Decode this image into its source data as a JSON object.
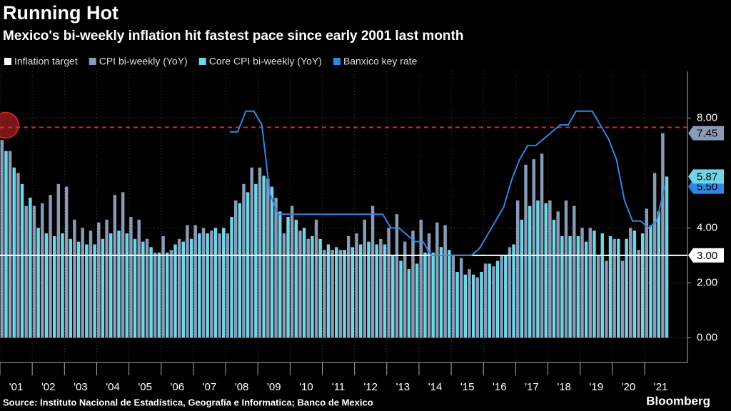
{
  "chart_data": {
    "type": "bar",
    "title": "Running Hot",
    "subtitle": "Mexico's bi-weekly inflation hit fastest pace since early 2001 last month",
    "source": "Source: Instituto Nacional de Estadística, Geografía e Informatica; Banco de Mexico",
    "brand": "Bloomberg",
    "categories": [
      "'01",
      null,
      null,
      null,
      "'02",
      null,
      null,
      null,
      "'03",
      null,
      null,
      null,
      "'04",
      null,
      null,
      null,
      "'05",
      null,
      null,
      null,
      "'06",
      null,
      null,
      null,
      "'07",
      null,
      null,
      null,
      "'08",
      null,
      null,
      null,
      "'09",
      null,
      null,
      null,
      "'10",
      null,
      null,
      null,
      "'11",
      null,
      null,
      null,
      "'12",
      null,
      null,
      null,
      "'13",
      null,
      null,
      null,
      "'14",
      null,
      null,
      null,
      "'15",
      null,
      null,
      null,
      "'16",
      null,
      null,
      null,
      "'17",
      null,
      null,
      null,
      "'18",
      null,
      null,
      null,
      "'19",
      null,
      null,
      null,
      "'20",
      null,
      null,
      null,
      "'21",
      null,
      null
    ],
    "target": {
      "name": "Inflation target",
      "value": 3,
      "value_label": "3.00",
      "color": "#ffffff"
    },
    "reference_line": {
      "value": 7.66,
      "color": "#e0262b"
    },
    "series": [
      {
        "name": "CPI bi-weekly (YoY)",
        "color": "#8a9bb8",
        "type": "bar",
        "values": [
          7.2,
          6.8,
          6.0,
          4.8,
          4.8,
          4.9,
          5.2,
          5.6,
          5.5,
          4.3,
          4.0,
          3.9,
          4.2,
          4.3,
          5.2,
          5.3,
          4.4,
          4.3,
          3.6,
          3.1,
          3.7,
          3.2,
          3.6,
          4.1,
          4.1,
          4.0,
          3.9,
          3.8,
          3.8,
          5.0,
          5.6,
          6.2,
          6.2,
          5.8,
          5.1,
          3.8,
          4.8,
          3.9,
          3.6,
          4.3,
          3.2,
          3.2,
          3.2,
          3.7,
          3.8,
          4.3,
          4.8,
          3.6,
          4.0,
          4.5,
          3.5,
          3.9,
          4.3,
          3.8,
          4.2,
          4.1,
          3.0,
          2.9,
          2.5,
          2.2,
          2.7,
          2.6,
          3.0,
          3.3,
          5.0,
          6.3,
          6.5,
          6.7,
          5.0,
          4.6,
          5.0,
          4.8,
          4.0,
          4.0,
          3.0,
          2.8,
          3.6,
          2.8,
          4.0,
          3.2,
          4.7,
          6.0,
          7.45
        ],
        "value_labels": [
          null,
          null,
          null,
          null,
          null,
          null,
          null,
          null,
          null,
          null,
          null,
          null,
          null,
          null,
          null,
          null,
          null,
          null,
          null,
          null,
          null,
          null,
          null,
          null,
          null,
          null,
          null,
          null,
          null,
          null,
          null,
          null,
          null,
          null,
          null,
          null,
          null,
          null,
          null,
          null,
          null,
          null,
          null,
          null,
          null,
          null,
          null,
          null,
          null,
          null,
          null,
          null,
          null,
          null,
          null,
          null,
          null,
          null,
          null,
          null,
          null,
          null,
          null,
          null,
          null,
          null,
          null,
          null,
          null,
          null,
          null,
          null,
          null,
          null,
          null,
          null,
          null,
          null,
          null,
          null,
          null,
          null,
          "7.45"
        ]
      },
      {
        "name": "Core CPI bi-weekly (YoY)",
        "color": "#6fd6e6",
        "type": "bar",
        "values": [
          6.8,
          6.2,
          5.6,
          5.1,
          4.0,
          3.8,
          3.7,
          3.8,
          3.6,
          3.5,
          3.4,
          3.4,
          3.6,
          3.8,
          3.9,
          3.8,
          3.6,
          3.5,
          3.3,
          3.1,
          3.1,
          3.4,
          3.5,
          3.6,
          3.8,
          3.8,
          4.0,
          4.0,
          4.4,
          4.9,
          5.3,
          5.6,
          5.9,
          5.5,
          4.6,
          4.4,
          4.3,
          4.0,
          3.7,
          3.6,
          3.4,
          3.3,
          3.2,
          3.3,
          3.4,
          3.5,
          3.4,
          3.4,
          3.0,
          2.8,
          2.5,
          2.7,
          3.1,
          3.1,
          3.3,
          3.2,
          2.4,
          2.3,
          2.3,
          2.4,
          2.7,
          2.8,
          3.0,
          3.4,
          4.3,
          4.8,
          5.0,
          4.9,
          4.3,
          3.7,
          3.7,
          3.7,
          3.5,
          3.9,
          3.8,
          3.7,
          3.6,
          3.6,
          3.9,
          3.8,
          4.1,
          4.6,
          5.87
        ],
        "value_labels": [
          null,
          null,
          null,
          null,
          null,
          null,
          null,
          null,
          null,
          null,
          null,
          null,
          null,
          null,
          null,
          null,
          null,
          null,
          null,
          null,
          null,
          null,
          null,
          null,
          null,
          null,
          null,
          null,
          null,
          null,
          null,
          null,
          null,
          null,
          null,
          null,
          null,
          null,
          null,
          null,
          null,
          null,
          null,
          null,
          null,
          null,
          null,
          null,
          null,
          null,
          null,
          null,
          null,
          null,
          null,
          null,
          null,
          null,
          null,
          null,
          null,
          null,
          null,
          null,
          null,
          null,
          null,
          null,
          null,
          null,
          null,
          null,
          null,
          null,
          null,
          null,
          null,
          null,
          null,
          null,
          null,
          null,
          "5.87"
        ]
      },
      {
        "name": "Banxico key rate",
        "color": "#2f86e6",
        "type": "line",
        "values": [
          null,
          null,
          null,
          null,
          null,
          null,
          null,
          null,
          null,
          null,
          null,
          null,
          null,
          null,
          null,
          null,
          null,
          null,
          null,
          null,
          null,
          null,
          null,
          null,
          null,
          null,
          null,
          null,
          7.5,
          7.5,
          8.25,
          8.25,
          7.75,
          5.25,
          4.5,
          4.5,
          4.5,
          4.5,
          4.5,
          4.5,
          4.5,
          4.5,
          4.5,
          4.5,
          4.5,
          4.5,
          4.5,
          4.5,
          4.0,
          4.0,
          3.75,
          3.5,
          3.5,
          3.0,
          3.0,
          3.0,
          3.0,
          3.0,
          3.0,
          3.25,
          3.75,
          4.25,
          4.75,
          5.75,
          6.5,
          7.0,
          7.0,
          7.25,
          7.5,
          7.75,
          7.75,
          8.25,
          8.25,
          8.25,
          7.75,
          7.25,
          6.5,
          5.0,
          4.25,
          4.25,
          4.0,
          4.25,
          5.5
        ],
        "value_labels": [
          null,
          null,
          null,
          null,
          null,
          null,
          null,
          null,
          null,
          null,
          null,
          null,
          null,
          null,
          null,
          null,
          null,
          null,
          null,
          null,
          null,
          null,
          null,
          null,
          null,
          null,
          null,
          null,
          null,
          null,
          null,
          null,
          null,
          null,
          null,
          null,
          null,
          null,
          null,
          null,
          null,
          null,
          null,
          null,
          null,
          null,
          null,
          null,
          null,
          null,
          null,
          null,
          null,
          null,
          null,
          null,
          null,
          null,
          null,
          null,
          null,
          null,
          null,
          null,
          null,
          null,
          null,
          null,
          null,
          null,
          null,
          null,
          null,
          null,
          null,
          null,
          null,
          null,
          null,
          null,
          null,
          null,
          "5.50"
        ]
      }
    ],
    "ylim": [
      -0.9,
      9.7
    ],
    "yticks": [
      {
        "value": 0,
        "label": "0.00"
      },
      {
        "value": 2,
        "label": "2.00"
      },
      {
        "value": 4,
        "label": "4.00"
      },
      {
        "value": 8,
        "label": "8.00"
      }
    ],
    "grid": true
  }
}
